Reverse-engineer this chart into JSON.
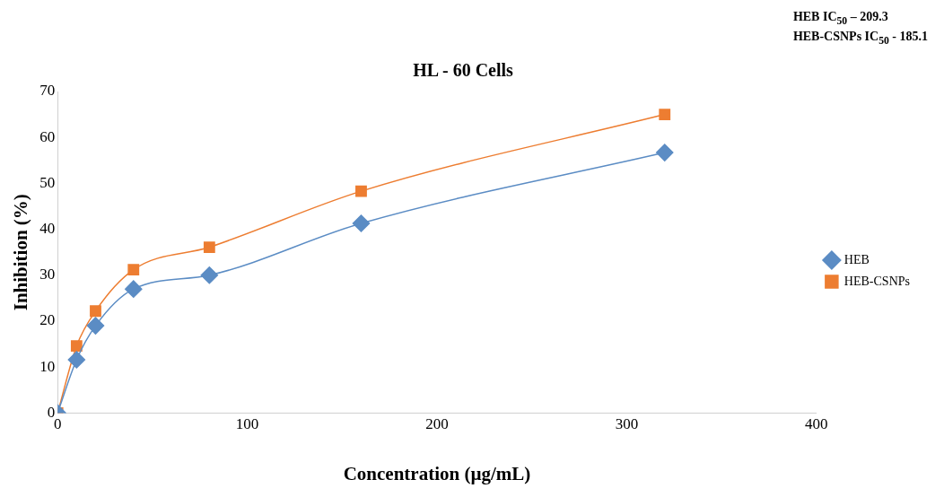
{
  "chart_data": {
    "type": "line",
    "title": "HL - 60 Cells",
    "xlabel": "Concentration (µg/mL)",
    "ylabel": "Inhibition (%)",
    "annotations": [
      "HEB IC$_{50}$ – 209.3",
      "HEB-CSNPs IC$_{50}$ - 185.1"
    ],
    "x": [
      0,
      10,
      20,
      40,
      80,
      160,
      320
    ],
    "series": [
      {
        "name": "HEB",
        "color": "#5b8cc4",
        "marker": "diamond",
        "values": [
          0,
          11.6,
          19.0,
          27.0,
          30.0,
          41.3,
          56.7
        ]
      },
      {
        "name": "HEB-CSNPs",
        "color": "#ed7d31",
        "marker": "square",
        "values": [
          0,
          14.6,
          22.2,
          31.2,
          36.1,
          48.3,
          65.0
        ]
      }
    ],
    "xlim": [
      0,
      400
    ],
    "xticks": [
      0,
      100,
      200,
      300,
      400
    ],
    "ylim": [
      0,
      70
    ],
    "yticks": [
      0,
      10,
      20,
      30,
      40,
      50,
      60,
      70
    ],
    "grid": false,
    "legend": "right"
  }
}
